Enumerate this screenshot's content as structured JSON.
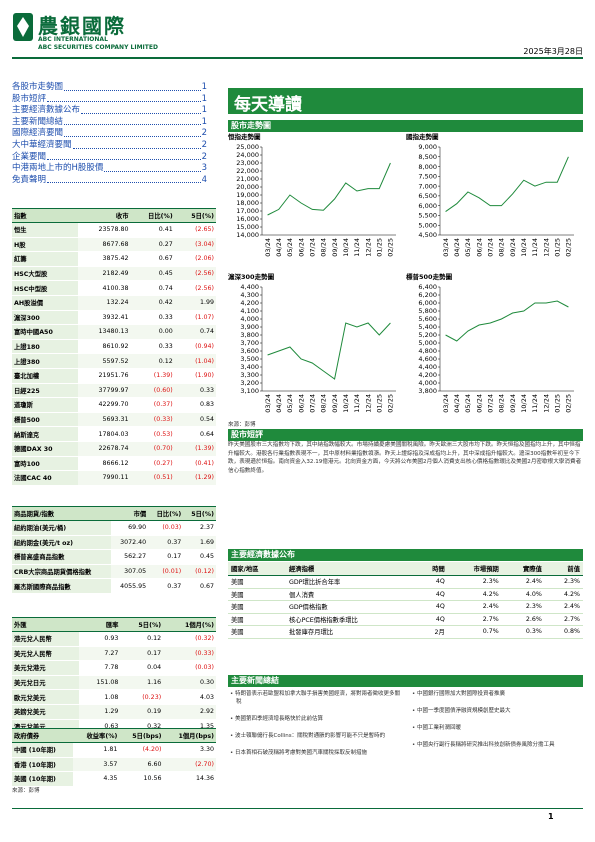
{
  "header": {
    "logo": "農銀國際",
    "company_en": "ABC INTERNATIONAL",
    "company_en2": "ABC SECURITIES COMPANY LIMITED",
    "date": "2025年3月28日"
  },
  "toc": [
    {
      "title": "各股市走勢圖",
      "page": "1"
    },
    {
      "title": "股市短評",
      "page": "1"
    },
    {
      "title": "主要經濟數據公布",
      "page": "1"
    },
    {
      "title": "主要新聞總結",
      "page": "1"
    },
    {
      "title": "國際經濟要聞",
      "page": "2"
    },
    {
      "title": "大中華經濟要聞",
      "page": "2"
    },
    {
      "title": "企業要聞",
      "page": "2"
    },
    {
      "title": "中港兩地上市的H股股價",
      "page": "3"
    },
    {
      "title": "免責聲明",
      "page": "4"
    }
  ],
  "title": "每天導讀",
  "charts_section": "股市走勢圖",
  "charts": [
    {
      "type": "line",
      "title": "恒指走勢圖",
      "categories": [
        "03/24",
        "04/24",
        "05/24",
        "06/24",
        "07/24",
        "08/24",
        "09/24",
        "10/24",
        "11/24",
        "12/24",
        "01/25",
        "02/25"
      ],
      "values": [
        16500,
        17200,
        19000,
        18000,
        17200,
        17100,
        18500,
        20500,
        19500,
        19800,
        19800,
        23000
      ],
      "ylim": [
        14000,
        25000
      ],
      "yticks": [
        {
          "value": 14000,
          "label": "14,000"
        },
        {
          "value": 15000,
          "label": "15,000"
        },
        {
          "value": 16000,
          "label": "16,000"
        },
        {
          "value": 17000,
          "label": "17,000"
        },
        {
          "value": 18000,
          "label": "18,000"
        },
        {
          "value": 19000,
          "label": "19,000"
        },
        {
          "value": 20000,
          "label": "20,000"
        },
        {
          "value": 21000,
          "label": "21,000"
        },
        {
          "value": 22000,
          "label": "22,000"
        },
        {
          "value": 23000,
          "label": "23,000"
        },
        {
          "value": 24000,
          "label": "24,000"
        },
        {
          "value": 25000,
          "label": "25,000"
        }
      ]
    },
    {
      "type": "line",
      "title": "國指走勢圖",
      "categories": [
        "03/24",
        "04/24",
        "05/24",
        "06/24",
        "07/24",
        "08/24",
        "09/24",
        "10/24",
        "11/24",
        "12/24",
        "01/25",
        "02/25"
      ],
      "values": [
        5700,
        6100,
        6700,
        6400,
        6000,
        6000,
        6600,
        7300,
        7000,
        7200,
        7200,
        8500
      ],
      "ylim": [
        4500,
        9000
      ],
      "yticks": [
        {
          "value": 4500,
          "label": "4,500"
        },
        {
          "value": 5000,
          "label": "5,000"
        },
        {
          "value": 5500,
          "label": "5,500"
        },
        {
          "value": 6000,
          "label": "6,000"
        },
        {
          "value": 6500,
          "label": "6,500"
        },
        {
          "value": 7000,
          "label": "7,000"
        },
        {
          "value": 7500,
          "label": "7,500"
        },
        {
          "value": 8000,
          "label": "8,000"
        },
        {
          "value": 8500,
          "label": "8,500"
        },
        {
          "value": 9000,
          "label": "9,000"
        }
      ]
    },
    {
      "type": "line",
      "title": "滬深300走勢圖",
      "categories": [
        "03/24",
        "04/24",
        "05/24",
        "06/24",
        "07/24",
        "08/24",
        "09/24",
        "10/24",
        "11/24",
        "12/24",
        "01/25",
        "02/25"
      ],
      "values": [
        3550,
        3600,
        3650,
        3500,
        3450,
        3350,
        3250,
        3950,
        3900,
        3950,
        3800,
        3950
      ],
      "ylim": [
        3100,
        4400
      ],
      "yticks": [
        {
          "value": 3100,
          "label": "3,100"
        },
        {
          "value": 3200,
          "label": "3,200"
        },
        {
          "value": 3300,
          "label": "3,300"
        },
        {
          "value": 3400,
          "label": "3,400"
        },
        {
          "value": 3500,
          "label": "3,500"
        },
        {
          "value": 3600,
          "label": "3,600"
        },
        {
          "value": 3700,
          "label": "3,700"
        },
        {
          "value": 3800,
          "label": "3,800"
        },
        {
          "value": 3900,
          "label": "3,900"
        },
        {
          "value": 4000,
          "label": "4,000"
        },
        {
          "value": 4100,
          "label": "4,100"
        },
        {
          "value": 4200,
          "label": "4,200"
        },
        {
          "value": 4300,
          "label": "4,300"
        },
        {
          "value": 4400,
          "label": "4,400"
        }
      ]
    },
    {
      "type": "line",
      "title": "標普500走勢圖",
      "categories": [
        "03/24",
        "04/24",
        "05/24",
        "06/24",
        "07/24",
        "08/24",
        "09/24",
        "10/24",
        "11/24",
        "12/24",
        "01/25",
        "02/25"
      ],
      "values": [
        5200,
        5050,
        5300,
        5450,
        5500,
        5600,
        5750,
        5800,
        6000,
        6000,
        6050,
        5900
      ],
      "ylim": [
        3800,
        6400
      ],
      "yticks": [
        {
          "value": 3800,
          "label": "3,800"
        },
        {
          "value": 4000,
          "label": "4,000"
        },
        {
          "value": 4200,
          "label": "4,200"
        },
        {
          "value": 4400,
          "label": "4,400"
        },
        {
          "value": 4600,
          "label": "4,600"
        },
        {
          "value": 4800,
          "label": "4,800"
        },
        {
          "value": 5000,
          "label": "5,000"
        },
        {
          "value": 5200,
          "label": "5,200"
        },
        {
          "value": 5400,
          "label": "5,400"
        },
        {
          "value": 5600,
          "label": "5,600"
        },
        {
          "value": 5800,
          "label": "5,800"
        },
        {
          "value": 6000,
          "label": "6,000"
        },
        {
          "value": 6200,
          "label": "6,200"
        },
        {
          "value": 6400,
          "label": "6,400"
        }
      ]
    }
  ],
  "chart_source": "來源：彭博",
  "commentary": {
    "title": "股市短評",
    "text": "昨天美國股市三大指數均下跌，其中納指跌幅較大。市場持續憂慮美國關稅風險。昨天歐洲三大股市均下跌。昨天恒指及國指均上升，其中恒指升幅較大。港股各行業指數表現不一，其中原材料業指數領漲。昨天上證綜指及深成指均上升，其中深成指升幅較大。滬深300指數年初至今下跌，表現遜於恒指。南向資金入32.19億港元。北向資金方面，今天將公布美國2月個人消費支出核心價格指數環比及美國2月密歇根大學消費者信心指數終值。"
  },
  "index_table": {
    "header": [
      "指數",
      "收市",
      "日比(%)",
      "5日(%)"
    ],
    "rows": [
      [
        "恒生",
        "23578.80",
        "0.41",
        "(2.65)"
      ],
      [
        "H股",
        "8677.68",
        "0.27",
        "(3.04)"
      ],
      [
        "紅籌",
        "3875.42",
        "0.67",
        "(2.06)"
      ],
      [
        "HSC大型股",
        "2182.49",
        "0.45",
        "(2.56)"
      ],
      [
        "HSC中型股",
        "4100.38",
        "0.74",
        "(2.56)"
      ],
      [
        "AH股溢價",
        "132.24",
        "0.42",
        "1.99"
      ],
      [
        "滬深300",
        "3932.41",
        "0.33",
        "(1.07)"
      ],
      [
        "富時中國A50",
        "13480.13",
        "0.00",
        "0.74"
      ],
      [
        "上證180",
        "8610.92",
        "0.33",
        "(0.94)"
      ],
      [
        "上證380",
        "5597.52",
        "0.12",
        "(1.04)"
      ],
      [
        "臺北加權",
        "21951.76",
        "(1.39)",
        "(1.90)"
      ],
      [
        "日經225",
        "37799.97",
        "(0.60)",
        "0.33"
      ],
      [
        "道瓊斯",
        "42299.70",
        "(0.37)",
        "0.83"
      ],
      [
        "標普500",
        "5693.31",
        "(0.33)",
        "0.54"
      ],
      [
        "納斯達克",
        "17804.03",
        "(0.53)",
        "0.64"
      ],
      [
        "德國DAX 30",
        "22678.74",
        "(0.70)",
        "(1.39)"
      ],
      [
        "富時100",
        "8666.12",
        "(0.27)",
        "(0.41)"
      ],
      [
        "法國CAC 40",
        "7990.11",
        "(0.51)",
        "(1.29)"
      ]
    ]
  },
  "commodity_table": {
    "header": [
      "商品期貨/指數",
      "市價",
      "日比(%)",
      "5日(%)"
    ],
    "rows": [
      [
        "紐約期油(美元/桶)",
        "69.90",
        "(0.03)",
        "2.37"
      ],
      [
        "紐約期金(美元/t oz)",
        "3072.40",
        "0.37",
        "1.69"
      ],
      [
        "標普高盛商品指數",
        "562.27",
        "0.17",
        "0.45"
      ],
      [
        "CRB大宗商品期貨價格指數",
        "307.05",
        "(0.01)",
        "(0.12)"
      ],
      [
        "羅杰斯國際商品指數",
        "4055.95",
        "0.37",
        "0.67"
      ]
    ]
  },
  "fx_table": {
    "header": [
      "外匯",
      "匯率",
      "5日(%)",
      "1個月(%)"
    ],
    "rows": [
      [
        "港元兌人民幣",
        "0.93",
        "0.12",
        "(0.32)"
      ],
      [
        "美元兌人民幣",
        "7.27",
        "0.17",
        "(0.33)"
      ],
      [
        "美元兌港元",
        "7.78",
        "0.04",
        "(0.03)"
      ],
      [
        "美元兌日元",
        "151.08",
        "1.16",
        "0.30"
      ],
      [
        "歐元兌美元",
        "1.08",
        "(0.23)",
        "4.03"
      ],
      [
        "英鎊兌美元",
        "1.29",
        "0.19",
        "2.92"
      ],
      [
        "澳元兌美元",
        "0.63",
        "0.32",
        "1.35"
      ]
    ]
  },
  "bond_table": {
    "header": [
      "政府債券",
      "收益率(%)",
      "5日(bps)",
      "1個月(bps)"
    ],
    "rows": [
      [
        "中國 (10年期)",
        "1.81",
        "(4.20)",
        "3.30"
      ],
      [
        "香港 (10年期)",
        "3.57",
        "6.60",
        "(2.70)"
      ],
      [
        "美國 (10年期)",
        "4.35",
        "10.56",
        "14.36"
      ]
    ]
  },
  "bond_source": "來源：彭博",
  "econ": {
    "title": "主要經濟數據公布",
    "header": [
      "國家/地區",
      "經濟指標",
      "時間",
      "市場預期",
      "實際值",
      "前值"
    ],
    "rows": [
      [
        "美國",
        "GDP環比折合年率",
        "4Q",
        "2.3%",
        "2.4%",
        "2.3%"
      ],
      [
        "美國",
        "個人消費",
        "4Q",
        "4.2%",
        "4.0%",
        "4.2%"
      ],
      [
        "美國",
        "GDP價格指數",
        "4Q",
        "2.4%",
        "2.3%",
        "2.4%"
      ],
      [
        "美國",
        "核心PCE價格指數季環比",
        "4Q",
        "2.7%",
        "2.6%",
        "2.7%"
      ],
      [
        "美國",
        "批發庫存月環比",
        "2月",
        "0.7%",
        "0.3%",
        "0.8%"
      ]
    ]
  },
  "news": {
    "title": "主要新聞總結",
    "left": [
      "特朗普表示若歐盟和加拿大聯手損害美國經濟，將對兩者徵收更多關稅",
      "美國第四季經濟增長略快於此前估算",
      "波士頓聯儲行長Collins：關稅對通脹的影響可能不只是暫時的",
      "日本首相石破茂稱將考慮對美國汽車關稅採取反制措施"
    ],
    "right": [
      "中國銀行國際加大對國際投資者推廣",
      "中國一季度國債淨融資規模創歷史最大",
      "中國工業利潤回暖",
      "中國央行副行長稱將研究推出科技創新債券風險分擔工具"
    ]
  },
  "footer": {
    "page": "1"
  }
}
